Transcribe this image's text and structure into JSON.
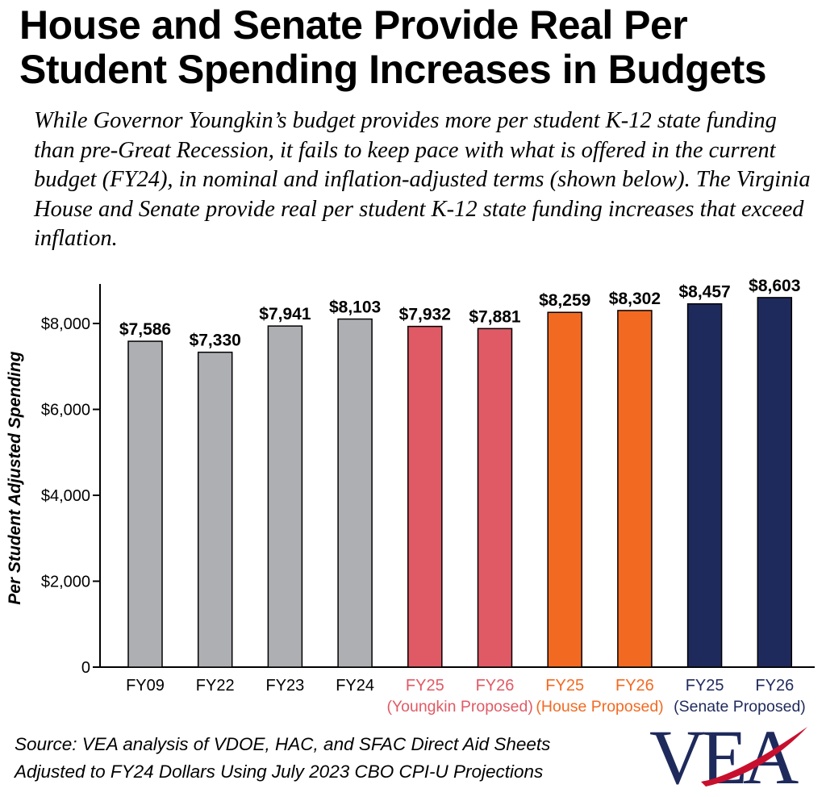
{
  "title_line1": "House and Senate Provide Real Per",
  "title_line2": "Student Spending Increases in Budgets",
  "subtitle": "While Governor Youngkin’s budget provides more per student K-12 state funding than pre-Great Recession, it fails to keep pace with what is offered in the current budget (FY24), in nominal and inflation-adjusted terms (shown below). The Virginia House and Senate provide real per student K-12 state funding increases that exceed inflation.",
  "source_line1": "Source: VEA analysis of VDOE, HAC, and SFAC Direct Aid Sheets",
  "source_line2": "Adjusted to FY24 Dollars Using July 2023 CBO CPI-U Projections",
  "logo_text": "VEA",
  "colors": {
    "gray": "#aeafb3",
    "youngkin": "#e05a65",
    "house": "#f26a22",
    "senate": "#1f2a5c"
  },
  "chart_data": {
    "type": "bar",
    "title": "",
    "xlabel": "",
    "ylabel": "Per Student Adjusted Spending",
    "ylim": [
      0,
      9000
    ],
    "yticks": [
      0,
      2000,
      4000,
      6000,
      8000
    ],
    "ytick_labels": [
      "0",
      "$2,000",
      "$4,000",
      "$6,000",
      "$8,000"
    ],
    "grid": false,
    "legend": "none",
    "categories": [
      "FY09",
      "FY22",
      "FY23",
      "FY24",
      "FY25",
      "FY26",
      "FY25",
      "FY26",
      "FY25",
      "FY26"
    ],
    "values": [
      7586,
      7330,
      7941,
      8103,
      7932,
      7881,
      8259,
      8302,
      8457,
      8603
    ],
    "value_labels": [
      "$7,586",
      "$7,330",
      "$7,941",
      "$8,103",
      "$7,932",
      "$7,881",
      "$8,259",
      "$8,302",
      "$8,457",
      "$8,603"
    ],
    "bar_colors": [
      "#aeafb3",
      "#aeafb3",
      "#aeafb3",
      "#aeafb3",
      "#e05a65",
      "#e05a65",
      "#f26a22",
      "#f26a22",
      "#1f2a5c",
      "#1f2a5c"
    ],
    "label_colors": [
      "#000000",
      "#000000",
      "#000000",
      "#000000",
      "#e05a65",
      "#e05a65",
      "#f26a22",
      "#f26a22",
      "#1f2a5c",
      "#1f2a5c"
    ],
    "groups": [
      {
        "label": "(Youngkin Proposed)",
        "color": "#e05a65",
        "bars": [
          4,
          5
        ]
      },
      {
        "label": "(House Proposed)",
        "color": "#f26a22",
        "bars": [
          6,
          7
        ]
      },
      {
        "label": "(Senate Proposed)",
        "color": "#1f2a5c",
        "bars": [
          8,
          9
        ]
      }
    ]
  }
}
